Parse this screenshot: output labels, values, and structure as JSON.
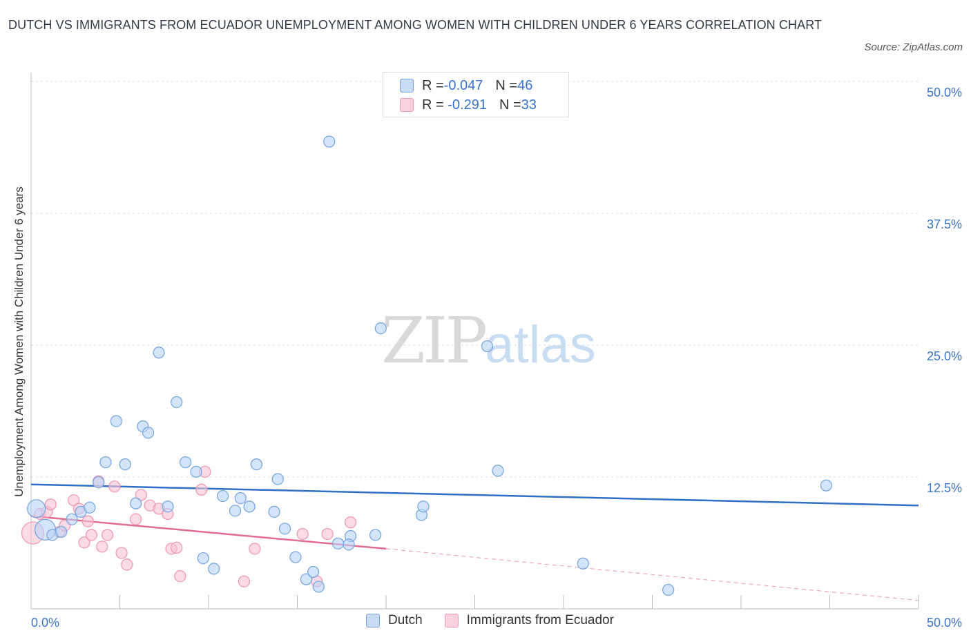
{
  "title": "DUTCH VS IMMIGRANTS FROM ECUADOR UNEMPLOYMENT AMONG WOMEN WITH CHILDREN UNDER 6 YEARS CORRELATION CHART",
  "source": "Source: ZipAtlas.com",
  "watermark": {
    "zip": "ZIP",
    "atlas": "atlas"
  },
  "colors": {
    "dutch_fill": "#b9d3f5",
    "dutch_stroke": "#7aa8e0",
    "dutch_line": "#2f6fc6",
    "ecu_fill": "#f8c5d5",
    "ecu_stroke": "#ee9ab5",
    "ecu_line": "#e06b93",
    "accent_text": "#3a74c8"
  },
  "legend": {
    "dutch": {
      "r_label": "R = ",
      "r_value": "-0.047",
      "n_label": "N = ",
      "n_value": "46"
    },
    "ecuador": {
      "r_label": "R = ",
      "r_value": " -0.291",
      "n_label": "N = ",
      "n_value": "33"
    }
  },
  "chart_data": {
    "type": "scatter",
    "title": "DUTCH VS IMMIGRANTS FROM ECUADOR UNEMPLOYMENT AMONG WOMEN WITH CHILDREN UNDER 6 YEARS CORRELATION CHART",
    "xlabel": "",
    "ylabel": "Unemployment Among Women with Children Under 6 years",
    "xlim": [
      0,
      50
    ],
    "ylim": [
      0,
      50
    ],
    "x_tick_labels": [
      "0.0%",
      "50.0%"
    ],
    "y_tick_values": [
      12.5,
      25.0,
      37.5,
      50.0
    ],
    "y_tick_labels": [
      "12.5%",
      "25.0%",
      "37.5%",
      "50.0%"
    ],
    "grid": true,
    "legend_position": "top-center",
    "series": [
      {
        "name": "Dutch",
        "points": [
          [
            0.3,
            9.5
          ],
          [
            0.8,
            7.5
          ],
          [
            1.2,
            7.0
          ],
          [
            1.7,
            7.3
          ],
          [
            2.3,
            8.5
          ],
          [
            2.8,
            9.2
          ],
          [
            3.3,
            9.6
          ],
          [
            3.8,
            12.0
          ],
          [
            4.2,
            13.9
          ],
          [
            4.8,
            17.8
          ],
          [
            5.3,
            13.7
          ],
          [
            5.9,
            10.0
          ],
          [
            6.3,
            17.3
          ],
          [
            6.6,
            16.7
          ],
          [
            7.2,
            24.3
          ],
          [
            7.7,
            9.7
          ],
          [
            8.2,
            19.6
          ],
          [
            8.7,
            13.9
          ],
          [
            9.3,
            13.0
          ],
          [
            9.7,
            4.8
          ],
          [
            10.3,
            3.8
          ],
          [
            10.8,
            10.7
          ],
          [
            11.5,
            9.3
          ],
          [
            11.8,
            10.5
          ],
          [
            12.3,
            9.7
          ],
          [
            12.7,
            13.7
          ],
          [
            13.7,
            9.2
          ],
          [
            13.9,
            12.3
          ],
          [
            14.3,
            7.6
          ],
          [
            14.9,
            4.9
          ],
          [
            15.5,
            2.8
          ],
          [
            15.9,
            3.5
          ],
          [
            16.2,
            2.1
          ],
          [
            16.8,
            44.3
          ],
          [
            17.3,
            6.2
          ],
          [
            18.0,
            6.9
          ],
          [
            17.9,
            6.1
          ],
          [
            19.4,
            7.0
          ],
          [
            19.7,
            26.6
          ],
          [
            22.0,
            8.9
          ],
          [
            22.1,
            9.7
          ],
          [
            25.7,
            24.9
          ],
          [
            26.3,
            13.1
          ],
          [
            31.1,
            4.3
          ],
          [
            35.9,
            1.8
          ],
          [
            44.8,
            11.7
          ]
        ],
        "trend": [
          [
            0.0,
            11.8
          ],
          [
            50.0,
            9.8
          ]
        ]
      },
      {
        "name": "Immigrants from Ecuador",
        "points": [
          [
            0.1,
            7.2
          ],
          [
            0.5,
            9.0
          ],
          [
            0.9,
            9.2
          ],
          [
            1.1,
            9.9
          ],
          [
            1.6,
            7.3
          ],
          [
            1.9,
            7.9
          ],
          [
            2.4,
            10.3
          ],
          [
            2.7,
            9.5
          ],
          [
            3.0,
            6.3
          ],
          [
            3.2,
            8.3
          ],
          [
            3.4,
            7.0
          ],
          [
            3.8,
            12.1
          ],
          [
            4.0,
            5.9
          ],
          [
            4.3,
            7.0
          ],
          [
            4.7,
            11.6
          ],
          [
            5.1,
            5.3
          ],
          [
            5.4,
            4.2
          ],
          [
            5.9,
            8.5
          ],
          [
            6.2,
            10.8
          ],
          [
            6.7,
            9.8
          ],
          [
            7.2,
            9.5
          ],
          [
            7.7,
            9.0
          ],
          [
            7.9,
            5.7
          ],
          [
            8.2,
            5.8
          ],
          [
            8.4,
            3.1
          ],
          [
            9.6,
            11.3
          ],
          [
            9.8,
            13.0
          ],
          [
            12.0,
            2.6
          ],
          [
            12.6,
            5.7
          ],
          [
            15.3,
            7.1
          ],
          [
            16.1,
            2.6
          ],
          [
            16.7,
            7.1
          ],
          [
            18.0,
            8.2
          ]
        ],
        "trend": [
          [
            0.0,
            8.8
          ],
          [
            20.0,
            5.7
          ]
        ],
        "trend_extension": [
          [
            20.0,
            5.7
          ],
          [
            50.0,
            0.8
          ]
        ]
      }
    ]
  },
  "bottom_legend": [
    {
      "key": "dutch",
      "label": "Dutch"
    },
    {
      "key": "ecuador",
      "label": "Immigrants from Ecuador"
    }
  ]
}
